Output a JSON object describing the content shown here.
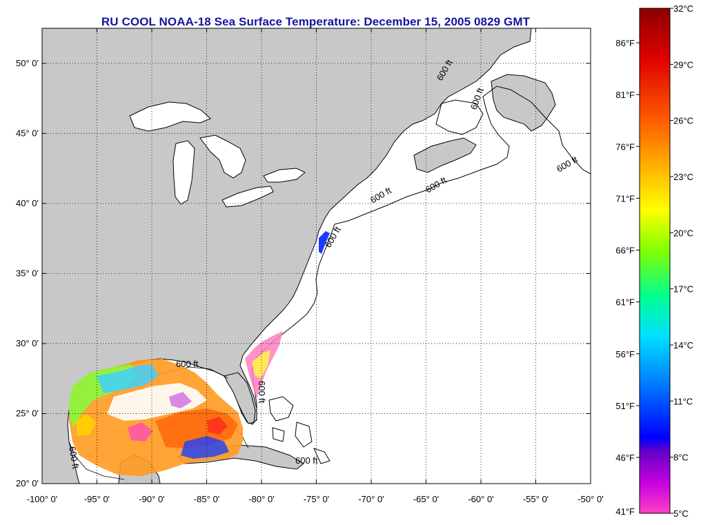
{
  "title": "RU COOL  NOAA-18  Sea Surface Temperature:  December 15, 2005 0829 GMT",
  "map": {
    "lon_range": [
      -100,
      -50
    ],
    "lat_range": [
      20,
      52.5
    ],
    "gridlines": true,
    "lat_ticks": [
      {
        "value": 50,
        "label": "50° 0'"
      },
      {
        "value": 45,
        "label": "45° 0'"
      },
      {
        "value": 40,
        "label": "40° 0'"
      },
      {
        "value": 35,
        "label": "35° 0'"
      },
      {
        "value": 30,
        "label": "30° 0'"
      },
      {
        "value": 25,
        "label": "25° 0'"
      },
      {
        "value": 20,
        "label": "20° 0'"
      }
    ],
    "lon_ticks": [
      {
        "value": -100,
        "label": "-100° 0'"
      },
      {
        "value": -95,
        "label": "-95° 0'"
      },
      {
        "value": -90,
        "label": "-90° 0'"
      },
      {
        "value": -85,
        "label": "-85° 0'"
      },
      {
        "value": -80,
        "label": "-80° 0'"
      },
      {
        "value": -75,
        "label": "-75° 0'"
      },
      {
        "value": -70,
        "label": "-70° 0'"
      },
      {
        "value": -65,
        "label": "-65° 0'"
      },
      {
        "value": -60,
        "label": "-60° 0'"
      },
      {
        "value": -55,
        "label": "-55° 0'"
      },
      {
        "value": -50,
        "label": "-50° 0'"
      }
    ],
    "isobath_label": "600 ft",
    "land_color": "#c8c8c8",
    "ocean_color": "#ffffff"
  },
  "colorbar": {
    "celsius_labels": [
      "32°C",
      "29°C",
      "26°C",
      "23°C",
      "20°C",
      "17°C",
      "14°C",
      "11°C",
      "8°C",
      "5°C"
    ],
    "fahrenheit_labels": [
      "86°F",
      "81°F",
      "76°F",
      "71°F",
      "66°F",
      "61°F",
      "56°F",
      "51°F",
      "46°F",
      "41°F"
    ],
    "colors": [
      "#8b0000",
      "#ff0000",
      "#ff6a00",
      "#ffbf00",
      "#ffff00",
      "#7fff00",
      "#00ff7f",
      "#00ffff",
      "#0080ff",
      "#0000ff",
      "#8000c0",
      "#ff00ff",
      "#ff40c8"
    ]
  }
}
